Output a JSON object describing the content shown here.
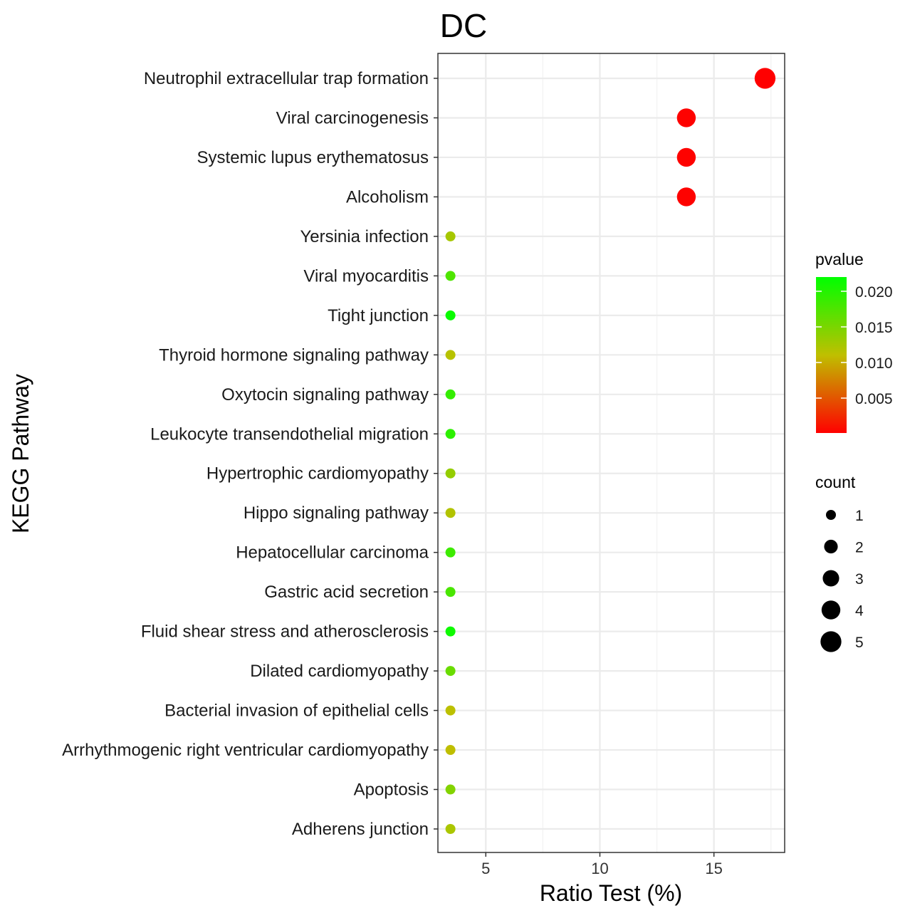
{
  "chart_data": {
    "type": "scatter",
    "title": "DC",
    "xlabel": "Ratio Test (%)",
    "ylabel": "KEGG Pathway",
    "xlim": [
      2.9,
      18.1
    ],
    "xticks": [
      5,
      10,
      15
    ],
    "grid": true,
    "categories": [
      "Neutrophil extracellular trap formation",
      "Viral carcinogenesis",
      "Systemic lupus erythematosus",
      "Alcoholism",
      "Yersinia infection",
      "Viral myocarditis",
      "Tight junction",
      "Thyroid hormone signaling pathway",
      "Oxytocin signaling pathway",
      "Leukocyte transendothelial migration",
      "Hypertrophic cardiomyopathy",
      "Hippo signaling pathway",
      "Hepatocellular carcinoma",
      "Gastric acid secretion",
      "Fluid shear stress and atherosclerosis",
      "Dilated cardiomyopathy",
      "Bacterial invasion of epithelial cells",
      "Arrhythmogenic right ventricular cardiomyopathy",
      "Apoptosis",
      "Adherens junction"
    ],
    "ratio": [
      17.24,
      13.79,
      13.79,
      13.79,
      3.45,
      3.45,
      3.45,
      3.45,
      3.45,
      3.45,
      3.45,
      3.45,
      3.45,
      3.45,
      3.45,
      3.45,
      3.45,
      3.45,
      3.45,
      3.45
    ],
    "count": [
      5,
      4,
      4,
      4,
      1,
      1,
      1,
      1,
      1,
      1,
      1,
      1,
      1,
      1,
      1,
      1,
      1,
      1,
      1,
      1
    ],
    "pvalue": [
      0.0001,
      0.0002,
      0.0002,
      0.0002,
      0.0125,
      0.0175,
      0.0215,
      0.0115,
      0.019,
      0.0195,
      0.0135,
      0.0118,
      0.0185,
      0.0178,
      0.0212,
      0.016,
      0.0112,
      0.011,
      0.0145,
      0.0122
    ],
    "color_legend": {
      "title": "pvalue",
      "ticks": [
        0.005,
        0.01,
        0.015,
        0.02
      ],
      "tick_labels": [
        "0.005",
        "0.010",
        "0.015",
        "0.020"
      ],
      "range": [
        0.0001,
        0.022
      ],
      "low_color": "#ff0000",
      "high_color": "#00ff00",
      "placement": "right"
    },
    "size_legend": {
      "title": "count",
      "values": [
        1,
        2,
        3,
        4,
        5
      ],
      "labels": [
        "1",
        "2",
        "3",
        "4",
        "5"
      ],
      "placement": "right"
    }
  }
}
